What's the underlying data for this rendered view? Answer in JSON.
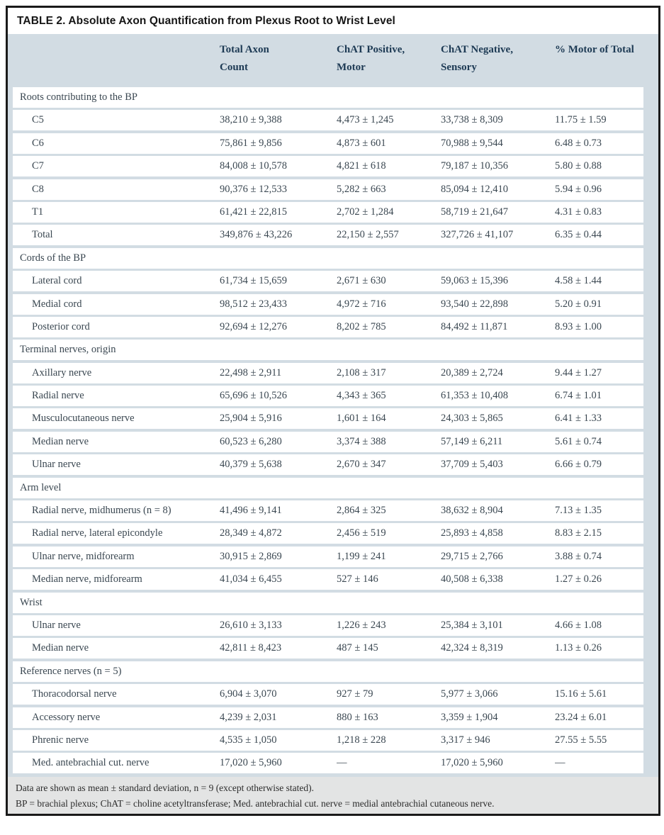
{
  "table": {
    "title": "TABLE 2. Absolute Axon Quantification from Plexus Root to Wrist Level",
    "columns": [
      {
        "line1": "Total Axon",
        "line2": "Count"
      },
      {
        "line1": "ChAT Positive,",
        "line2": "Motor"
      },
      {
        "line1": "ChAT Negative,",
        "line2": "Sensory"
      },
      {
        "line1": "% Motor of Total",
        "line2": ""
      }
    ],
    "sections": [
      {
        "label": "Roots contributing to the BP",
        "rows": [
          {
            "label": "C5",
            "total_axon_count": "38,210 ± 9,388",
            "chat_positive_motor": "4,473 ± 1,245",
            "chat_negative_sensory": "33,738 ± 8,309",
            "pct_motor_of_total": "11.75 ± 1.59"
          },
          {
            "label": "C6",
            "total_axon_count": "75,861 ± 9,856",
            "chat_positive_motor": "4,873 ± 601",
            "chat_negative_sensory": "70,988 ± 9,544",
            "pct_motor_of_total": "6.48 ± 0.73"
          },
          {
            "label": "C7",
            "total_axon_count": "84,008 ± 10,578",
            "chat_positive_motor": "4,821 ± 618",
            "chat_negative_sensory": "79,187 ± 10,356",
            "pct_motor_of_total": "5.80 ± 0.88"
          },
          {
            "label": "C8",
            "total_axon_count": "90,376 ± 12,533",
            "chat_positive_motor": "5,282 ± 663",
            "chat_negative_sensory": "85,094 ± 12,410",
            "pct_motor_of_total": "5.94 ± 0.96"
          },
          {
            "label": "T1",
            "total_axon_count": "61,421 ± 22,815",
            "chat_positive_motor": "2,702 ± 1,284",
            "chat_negative_sensory": "58,719 ± 21,647",
            "pct_motor_of_total": "4.31 ± 0.83"
          },
          {
            "label": "Total",
            "total_axon_count": "349,876 ± 43,226",
            "chat_positive_motor": "22,150 ± 2,557",
            "chat_negative_sensory": "327,726 ± 41,107",
            "pct_motor_of_total": "6.35 ± 0.44"
          }
        ]
      },
      {
        "label": "Cords of the BP",
        "rows": [
          {
            "label": "Lateral cord",
            "total_axon_count": "61,734 ± 15,659",
            "chat_positive_motor": "2,671 ± 630",
            "chat_negative_sensory": "59,063 ± 15,396",
            "pct_motor_of_total": "4.58 ± 1.44"
          },
          {
            "label": "Medial cord",
            "total_axon_count": "98,512 ± 23,433",
            "chat_positive_motor": "4,972 ± 716",
            "chat_negative_sensory": "93,540 ± 22,898",
            "pct_motor_of_total": "5.20 ± 0.91"
          },
          {
            "label": "Posterior cord",
            "total_axon_count": "92,694 ± 12,276",
            "chat_positive_motor": "8,202 ± 785",
            "chat_negative_sensory": "84,492 ± 11,871",
            "pct_motor_of_total": "8.93 ± 1.00"
          }
        ]
      },
      {
        "label": "Terminal nerves, origin",
        "rows": [
          {
            "label": "Axillary nerve",
            "total_axon_count": "22,498 ± 2,911",
            "chat_positive_motor": "2,108 ± 317",
            "chat_negative_sensory": "20,389 ± 2,724",
            "pct_motor_of_total": "9.44 ± 1.27"
          },
          {
            "label": "Radial nerve",
            "total_axon_count": "65,696 ± 10,526",
            "chat_positive_motor": "4,343 ± 365",
            "chat_negative_sensory": "61,353 ± 10,408",
            "pct_motor_of_total": "6.74 ± 1.01"
          },
          {
            "label": "Musculocutaneous nerve",
            "total_axon_count": "25,904 ± 5,916",
            "chat_positive_motor": "1,601 ± 164",
            "chat_negative_sensory": "24,303 ± 5,865",
            "pct_motor_of_total": "6.41 ± 1.33"
          },
          {
            "label": "Median nerve",
            "total_axon_count": "60,523 ± 6,280",
            "chat_positive_motor": "3,374 ± 388",
            "chat_negative_sensory": "57,149 ± 6,211",
            "pct_motor_of_total": "5.61 ± 0.74"
          },
          {
            "label": "Ulnar nerve",
            "total_axon_count": "40,379 ± 5,638",
            "chat_positive_motor": "2,670 ± 347",
            "chat_negative_sensory": "37,709 ± 5,403",
            "pct_motor_of_total": "6.66 ± 0.79"
          }
        ]
      },
      {
        "label": "Arm level",
        "rows": [
          {
            "label": "Radial nerve, midhumerus (n = 8)",
            "total_axon_count": "41,496 ± 9,141",
            "chat_positive_motor": "2,864 ± 325",
            "chat_negative_sensory": "38,632 ± 8,904",
            "pct_motor_of_total": "7.13 ± 1.35"
          },
          {
            "label": "Radial nerve, lateral epicondyle",
            "total_axon_count": "28,349 ± 4,872",
            "chat_positive_motor": "2,456 ± 519",
            "chat_negative_sensory": "25,893 ± 4,858",
            "pct_motor_of_total": "8.83 ± 2.15"
          },
          {
            "label": "Ulnar nerve, midforearm",
            "total_axon_count": "30,915 ± 2,869",
            "chat_positive_motor": "1,199 ± 241",
            "chat_negative_sensory": "29,715 ± 2,766",
            "pct_motor_of_total": "3.88 ± 0.74"
          },
          {
            "label": "Median nerve, midforearm",
            "total_axon_count": "41,034 ± 6,455",
            "chat_positive_motor": "527 ± 146",
            "chat_negative_sensory": "40,508 ± 6,338",
            "pct_motor_of_total": "1.27 ± 0.26"
          }
        ]
      },
      {
        "label": "Wrist",
        "rows": [
          {
            "label": "Ulnar nerve",
            "total_axon_count": "26,610 ± 3,133",
            "chat_positive_motor": "1,226 ± 243",
            "chat_negative_sensory": "25,384 ± 3,101",
            "pct_motor_of_total": "4.66 ± 1.08"
          },
          {
            "label": "Median nerve",
            "total_axon_count": "42,811 ± 8,423",
            "chat_positive_motor": "487 ± 145",
            "chat_negative_sensory": "42,324 ± 8,319",
            "pct_motor_of_total": "1.13 ± 0.26"
          }
        ]
      },
      {
        "label": "Reference nerves (n = 5)",
        "rows": [
          {
            "label": "Thoracodorsal nerve",
            "total_axon_count": "6,904 ± 3,070",
            "chat_positive_motor": "927 ± 79",
            "chat_negative_sensory": "5,977 ± 3,066",
            "pct_motor_of_total": "15.16 ± 5.61"
          },
          {
            "label": "Accessory nerve",
            "total_axon_count": "4,239 ± 2,031",
            "chat_positive_motor": "880 ± 163",
            "chat_negative_sensory": "3,359 ± 1,904",
            "pct_motor_of_total": "23.24 ± 6.01"
          },
          {
            "label": "Phrenic nerve",
            "total_axon_count": "4,535 ± 1,050",
            "chat_positive_motor": "1,218 ± 228",
            "chat_negative_sensory": "3,317 ± 946",
            "pct_motor_of_total": "27.55 ± 5.55"
          },
          {
            "label": "Med. antebrachial cut. nerve",
            "total_axon_count": "17,020 ± 5,960",
            "chat_positive_motor": "—",
            "chat_negative_sensory": "17,020 ± 5,960",
            "pct_motor_of_total": "—"
          }
        ]
      }
    ],
    "footnotes": [
      "Data are shown as mean ± standard deviation, n = 9 (except otherwise stated).",
      "BP = brachial plexus; ChAT = choline acetyltransferase; Med. antebrachial cut. nerve = medial antebrachial cutaneous nerve."
    ],
    "colors": {
      "band_blue": "#d2dce3",
      "footer_gray": "#e3e4e4",
      "header_text": "#1d3a54",
      "body_text": "#3a4751",
      "border": "#1a1a1a"
    }
  }
}
